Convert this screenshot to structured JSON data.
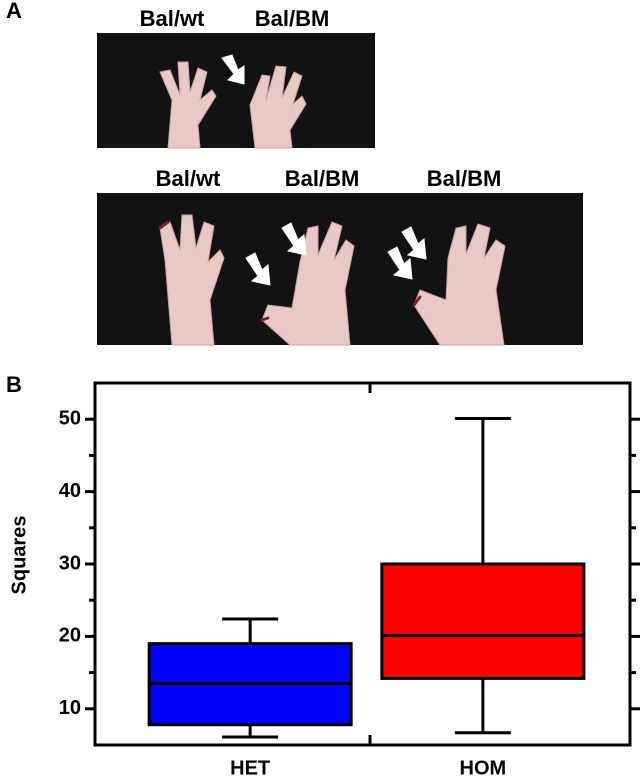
{
  "panel_a": {
    "label": "A",
    "photo_1_labels": [
      "Bal/wt",
      "Bal/BM"
    ],
    "photo_2_labels": [
      "Bal/wt",
      "Bal/BM",
      "Bal/BM"
    ]
  },
  "panel_b_label": "B",
  "chart_data": {
    "type": "box",
    "y_label": "Squares",
    "categories": [
      "HET",
      "HOM"
    ],
    "boxes": [
      {
        "whisker_low": 6.1,
        "q1": 7.8,
        "median": 13.5,
        "q3": 19,
        "whisker_high": 22.4,
        "color": "#0000ff"
      },
      {
        "whisker_low": 6.7,
        "q1": 14.2,
        "median": 20.1,
        "q3": 30,
        "whisker_high": 50.1,
        "color": "#ff0000"
      }
    ],
    "ylim": [
      5,
      55
    ],
    "yticks": [
      10,
      20,
      30,
      40,
      50
    ],
    "minor_yticks": [
      15,
      25,
      35,
      45
    ]
  }
}
